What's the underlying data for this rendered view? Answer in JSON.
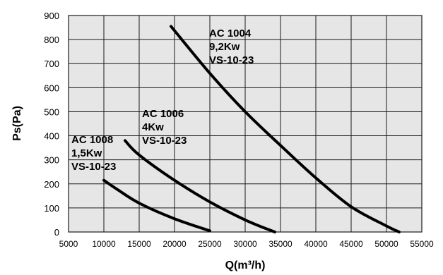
{
  "chart_data": {
    "type": "line",
    "xlabel": "Q(m³/h)",
    "ylabel": "Ps(Pa)",
    "xlim": [
      5000,
      55000
    ],
    "ylim": [
      0,
      900
    ],
    "x_ticks": [
      "5000",
      "10000",
      "15000",
      "20000",
      "25000",
      "30000",
      "35000",
      "40000",
      "45000",
      "50000",
      "55000"
    ],
    "y_ticks": [
      "0",
      "100",
      "200",
      "300",
      "400",
      "500",
      "600",
      "700",
      "800",
      "900"
    ],
    "grid": true,
    "background": "#e6e6e6",
    "series": [
      {
        "name": "AC 1004",
        "label_lines": [
          "AC 1004",
          "9,2Kw",
          "VS-10-23"
        ],
        "x": [
          19500,
          25000,
          30000,
          35000,
          40000,
          45000,
          50000,
          51800
        ],
        "y": [
          855,
          660,
          500,
          360,
          225,
          105,
          25,
          0
        ]
      },
      {
        "name": "AC 1006",
        "label_lines": [
          "AC 1006",
          "4Kw",
          "VS-10-23"
        ],
        "x": [
          13000,
          15000,
          20000,
          25000,
          30000,
          34200
        ],
        "y": [
          380,
          320,
          215,
          125,
          50,
          0
        ]
      },
      {
        "name": "AC 1008",
        "label_lines": [
          "AC 1008",
          "1,5Kw",
          "VS-10-23"
        ],
        "x": [
          10000,
          12000,
          15000,
          20000,
          25000
        ],
        "y": [
          215,
          175,
          120,
          55,
          5
        ]
      }
    ]
  }
}
